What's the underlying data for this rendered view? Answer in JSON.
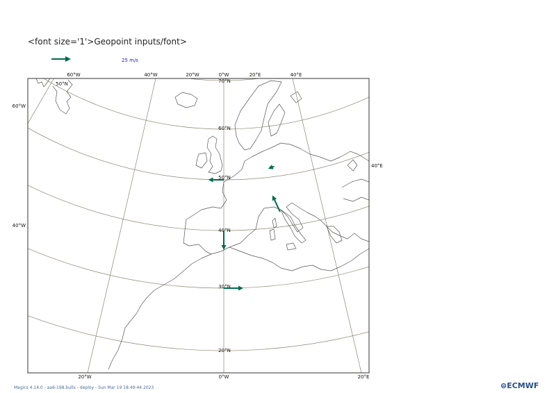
{
  "title": "<font size='1'>Geopoint inputs/font>",
  "legend": {
    "label": "25 m/s"
  },
  "footer": "Magics 4.14.0 - aa6-198.bullx - deploy - Sun Mar 19 18:49:44 2023",
  "logo_text": "ECMWF",
  "colors": {
    "arrow": "#006b4a",
    "grid": "#8b8470",
    "coast": "#555555",
    "frame": "#333333"
  },
  "top_lon_labels": [
    "60°W",
    "40°W",
    "20°W",
    "0°W",
    "20°E",
    "40°E"
  ],
  "bottom_lon_labels": [
    "20°W",
    "0°W",
    "20°E"
  ],
  "left_lat_labels": [
    "60°W",
    "40°W"
  ],
  "right_labels": [
    "40°E"
  ],
  "inner_lat_labels": [
    "70°N",
    "60°N",
    "50°N",
    "40°N",
    "30°N",
    "20°N"
  ],
  "corner_lat_label": "50°N",
  "arrows": [
    {
      "name": "arrow-east-30n",
      "lon": 0,
      "lat": 30,
      "u": 25,
      "v": 0
    },
    {
      "name": "arrow-south-40n",
      "lon": 0,
      "lat": 40,
      "u": 0,
      "v": -25
    },
    {
      "name": "arrow-west-50n",
      "lon": 0,
      "lat": 50,
      "u": -20,
      "v": 0
    },
    {
      "name": "arrow-north-italy",
      "lon": 15,
      "lat": 43,
      "u": -7,
      "v": 22
    },
    {
      "name": "arrow-west-central-europe",
      "lon": 15,
      "lat": 52,
      "u": -8,
      "v": -2
    }
  ]
}
